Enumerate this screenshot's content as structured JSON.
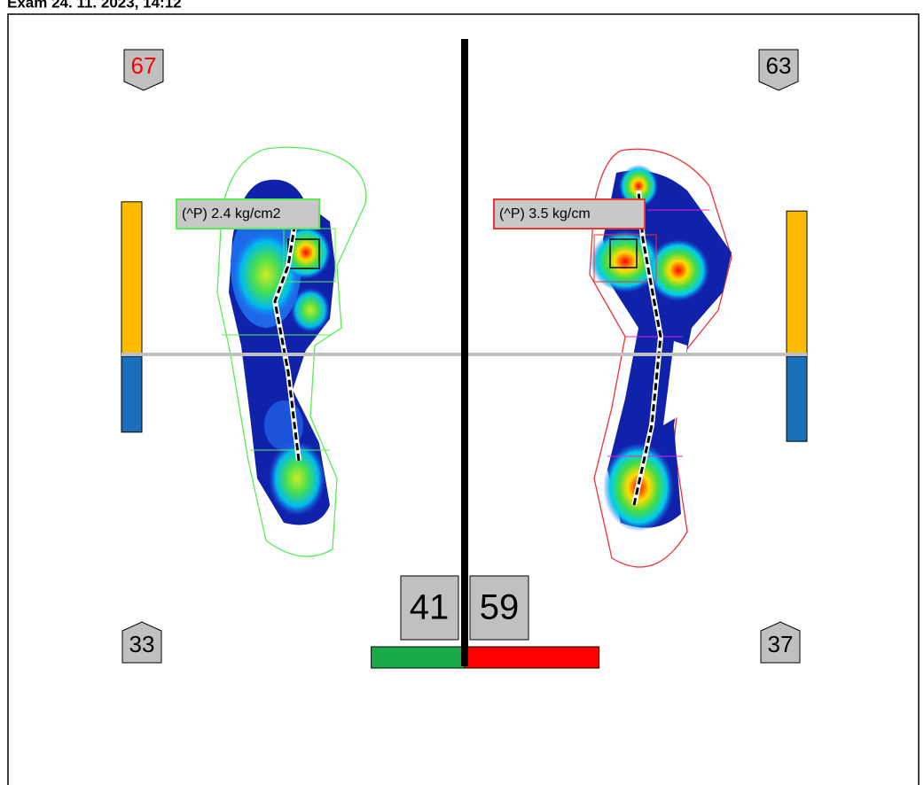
{
  "header": {
    "title": "Exam 24. 11. 2023, 14:12"
  },
  "left_foot": {
    "front": 67,
    "rear": 33,
    "peak_label": "(^P) 2.4 kg/cm2"
  },
  "right_foot": {
    "front": 63,
    "rear": 37,
    "peak_label": "(^P) 3.5 kg/cm"
  },
  "distribution": {
    "left": 41,
    "right": 59
  }
}
